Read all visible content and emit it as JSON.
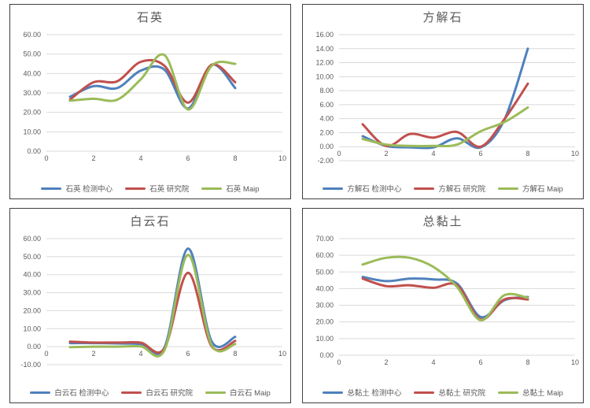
{
  "colors": {
    "series_blue": "#4F81BD",
    "series_red": "#C0504D",
    "series_green": "#9BBB59",
    "gridline": "#D9D9D9",
    "axis_text": "#595959",
    "title_text": "#595959",
    "panel_border": "#3f3f3f",
    "background": "#ffffff"
  },
  "chart_data": [
    {
      "type": "line",
      "title": "石英",
      "x": [
        1,
        2,
        3,
        4,
        5,
        6,
        7,
        8
      ],
      "xlim": [
        0,
        10
      ],
      "xstep": 2,
      "ylim": [
        0,
        60
      ],
      "ystep": 10,
      "y_tick_labels": [
        "0.00",
        "10.00",
        "20.00",
        "30.00",
        "40.00",
        "50.00",
        "60.00"
      ],
      "x_tick_labels": [
        "0",
        "2",
        "4",
        "6",
        "8",
        "10"
      ],
      "grid": true,
      "smooth": true,
      "legend_position": "bottom",
      "series": [
        {
          "name": "石英 检测中心",
          "color": "#4F81BD",
          "values": [
            28,
            33.5,
            32.5,
            41.5,
            42,
            22,
            44.5,
            32.5
          ]
        },
        {
          "name": "石英 研究院",
          "color": "#C0504D",
          "values": [
            26.5,
            35.5,
            36,
            46,
            44,
            25,
            44.5,
            35.5
          ]
        },
        {
          "name": "石英 Maip",
          "color": "#9BBB59",
          "values": [
            26,
            27,
            26.5,
            37,
            49.5,
            21.5,
            44,
            45
          ]
        }
      ]
    },
    {
      "type": "line",
      "title": "方解石",
      "x": [
        1,
        2,
        3,
        4,
        5,
        6,
        7,
        8
      ],
      "xlim": [
        0,
        10
      ],
      "xstep": 2,
      "ylim": [
        -2,
        16
      ],
      "ystep": 2,
      "y_tick_labels": [
        "-2.00",
        "0.00",
        "2.00",
        "4.00",
        "6.00",
        "8.00",
        "10.00",
        "12.00",
        "14.00",
        "16.00"
      ],
      "x_tick_labels": [
        "0",
        "2",
        "4",
        "6",
        "8",
        "10"
      ],
      "grid": true,
      "smooth": true,
      "legend_position": "bottom",
      "series": [
        {
          "name": "方解石 检测中心",
          "color": "#4F81BD",
          "values": [
            1.5,
            0.1,
            -0.1,
            -0.1,
            1.2,
            -0.1,
            3.8,
            14
          ]
        },
        {
          "name": "方解石 研究院",
          "color": "#C0504D",
          "values": [
            3.2,
            0.1,
            1.8,
            1.3,
            2.1,
            0,
            3.9,
            9
          ]
        },
        {
          "name": "方解石 Maip",
          "color": "#9BBB59",
          "values": [
            1.1,
            0.3,
            0.1,
            0.1,
            0.3,
            2.2,
            3.5,
            5.6
          ]
        }
      ]
    },
    {
      "type": "line",
      "title": "白云石",
      "x": [
        1,
        2,
        3,
        4,
        5,
        6,
        7,
        8
      ],
      "xlim": [
        0,
        10
      ],
      "xstep": 2,
      "ylim": [
        -10,
        60
      ],
      "ystep": 10,
      "y_tick_labels": [
        "-10.00",
        "0.00",
        "10.00",
        "20.00",
        "30.00",
        "40.00",
        "50.00",
        "60.00"
      ],
      "x_tick_labels": [
        "0",
        "2",
        "4",
        "6",
        "8",
        "10"
      ],
      "grid": true,
      "smooth": true,
      "legend_position": "bottom",
      "series": [
        {
          "name": "白云石 检测中心",
          "color": "#4F81BD",
          "values": [
            2,
            2,
            1.8,
            1.5,
            -0.5,
            54.5,
            3,
            5.5
          ]
        },
        {
          "name": "白云石 研究院",
          "color": "#C0504D",
          "values": [
            2.8,
            2.3,
            2.3,
            2.2,
            -1,
            41,
            0.3,
            3.2
          ]
        },
        {
          "name": "白云石 Maip",
          "color": "#9BBB59",
          "values": [
            -0.3,
            0,
            0,
            0.2,
            -2,
            51,
            1,
            1.5
          ]
        }
      ]
    },
    {
      "type": "line",
      "title": "总黏土",
      "x": [
        1,
        2,
        3,
        4,
        5,
        6,
        7,
        8
      ],
      "xlim": [
        0,
        10
      ],
      "xstep": 2,
      "ylim": [
        0,
        70
      ],
      "ystep": 10,
      "y_tick_labels": [
        "0.00",
        "10.00",
        "20.00",
        "30.00",
        "40.00",
        "50.00",
        "60.00",
        "70.00"
      ],
      "x_tick_labels": [
        "0",
        "2",
        "4",
        "6",
        "8",
        "10"
      ],
      "grid": true,
      "smooth": true,
      "legend_position": "bottom",
      "series": [
        {
          "name": "总黏土 检测中心",
          "color": "#4F81BD",
          "values": [
            47,
            44.5,
            46,
            45.5,
            43,
            23,
            33,
            35
          ]
        },
        {
          "name": "总黏土 研究院",
          "color": "#C0504D",
          "values": [
            46,
            41.5,
            42,
            40.5,
            42,
            21.5,
            33.5,
            33.5
          ]
        },
        {
          "name": "总黏土 Maip",
          "color": "#9BBB59",
          "values": [
            54.5,
            58.5,
            58.5,
            53,
            41,
            21,
            36,
            34.5
          ]
        }
      ]
    }
  ]
}
